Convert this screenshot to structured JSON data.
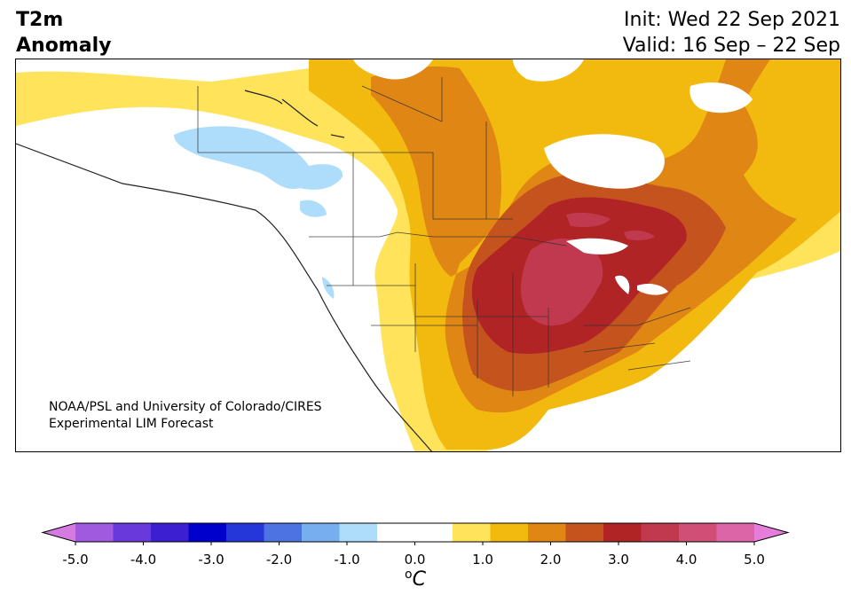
{
  "header": {
    "title_left": "T2m\nAnomaly",
    "title_right": "Init: Wed 22 Sep 2021\nValid: 16 Sep – 22 Sep"
  },
  "map": {
    "region": "North America",
    "credit": "NOAA/PSL and University of Colorado/CIRES\nExperimental LIM Forecast",
    "layers": [
      {
        "name": "anomaly-0.5-1.0",
        "color": "#ffe35b"
      },
      {
        "name": "anomaly-1.0-1.5",
        "color": "#f2b90f"
      },
      {
        "name": "anomaly-1.5-2.0",
        "color": "#df8615"
      },
      {
        "name": "anomaly-2.0-2.5",
        "color": "#c5531e"
      },
      {
        "name": "anomaly-2.5-3.0",
        "color": "#b02425"
      },
      {
        "name": "anomaly-3.0-3.5",
        "color": "#c0394f"
      },
      {
        "name": "anomaly-neg-0.5-1.0",
        "color": "#aeddfb"
      }
    ]
  },
  "colorbar": {
    "unit": "oC",
    "ticks": [
      "-5.0",
      "-4.0",
      "-3.0",
      "-2.0",
      "-1.0",
      "0.0",
      "1.0",
      "2.0",
      "3.0",
      "4.0",
      "5.0"
    ],
    "under_color": "#d57ae2",
    "over_color": "#e77ddb",
    "colors": [
      "#d57ae2",
      "#9f5ae0",
      "#6a39db",
      "#3b1fd1",
      "#0000cc",
      "#2537d8",
      "#4d73e2",
      "#76aef0",
      "#aeddfb",
      "#ffffff",
      "#ffffff",
      "#ffe35b",
      "#f2b90f",
      "#df8615",
      "#c5531e",
      "#b02425",
      "#c0394f",
      "#cf4f76",
      "#db65a7",
      "#e77ddb"
    ]
  }
}
